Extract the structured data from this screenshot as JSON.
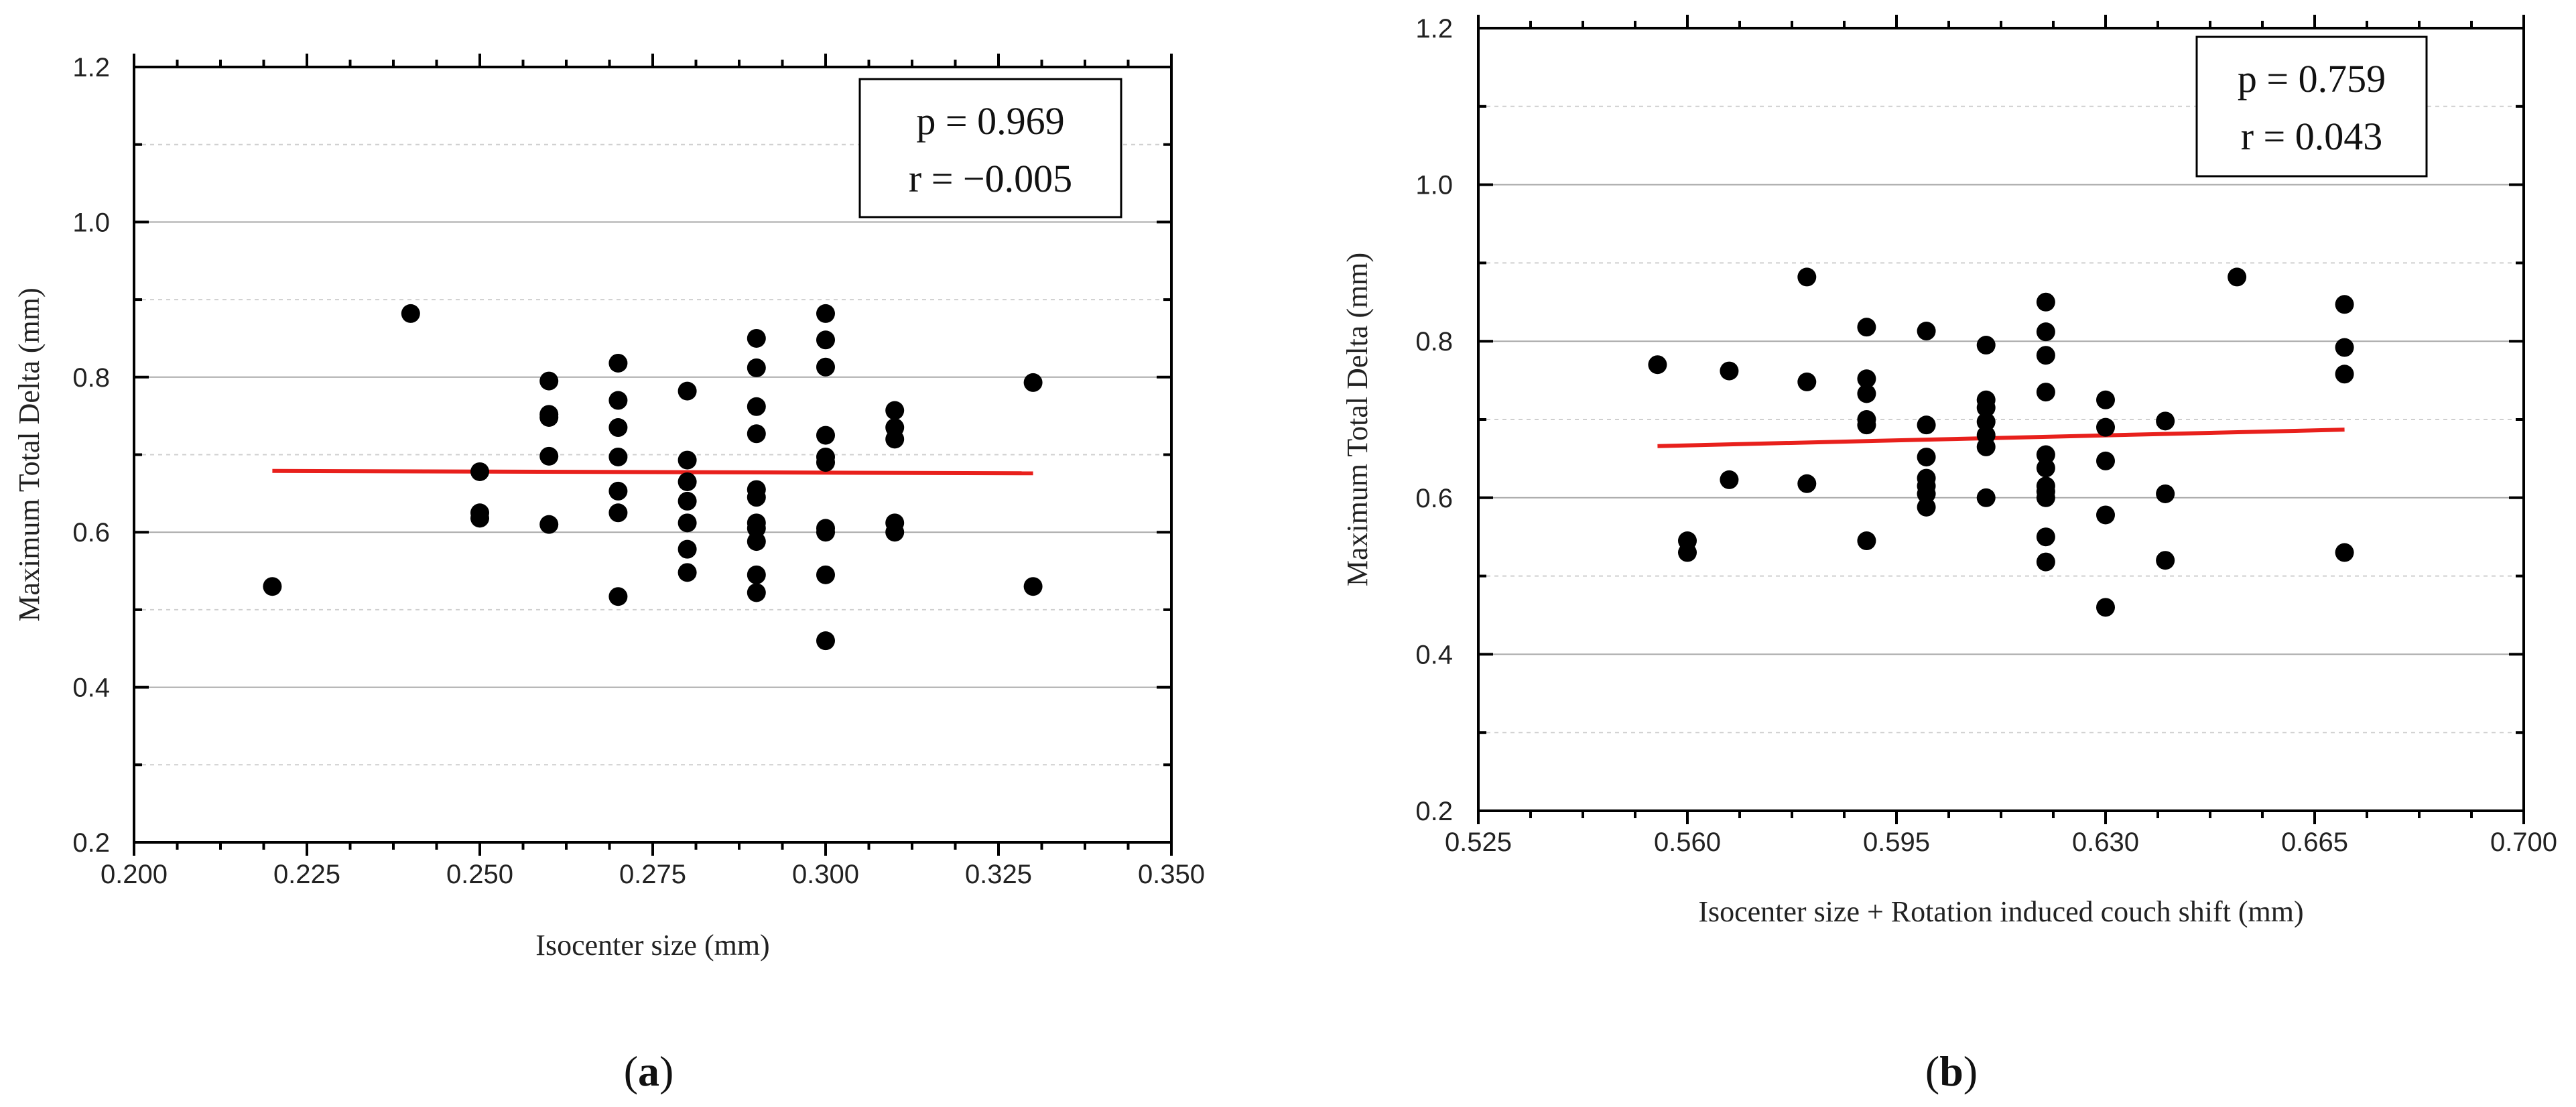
{
  "chart_data": [
    {
      "type": "scatter",
      "panel": "a",
      "panel_label": "a",
      "xlabel": "Isocenter size (mm)",
      "ylabel": "Maximum Total Delta (mm)",
      "xlim": [
        0.2,
        0.35
      ],
      "ylim": [
        0.2,
        1.2
      ],
      "xticks": [
        "0.200",
        "0.225",
        "0.250",
        "0.275",
        "0.300",
        "0.325",
        "0.350"
      ],
      "yticks": [
        "0.2",
        "0.4",
        "0.6",
        "0.8",
        "1.0",
        "1.2"
      ],
      "stats": [
        "p = 0.969",
        "r = −0.005"
      ],
      "fit_line": {
        "x": [
          0.22,
          0.33
        ],
        "y": [
          0.679,
          0.676
        ]
      },
      "points": [
        [
          0.22,
          0.53
        ],
        [
          0.24,
          0.882
        ],
        [
          0.25,
          0.678
        ],
        [
          0.25,
          0.625
        ],
        [
          0.25,
          0.618
        ],
        [
          0.26,
          0.795
        ],
        [
          0.26,
          0.752
        ],
        [
          0.26,
          0.748
        ],
        [
          0.26,
          0.698
        ],
        [
          0.26,
          0.61
        ],
        [
          0.27,
          0.818
        ],
        [
          0.27,
          0.77
        ],
        [
          0.27,
          0.735
        ],
        [
          0.27,
          0.697
        ],
        [
          0.27,
          0.653
        ],
        [
          0.27,
          0.625
        ],
        [
          0.27,
          0.517
        ],
        [
          0.28,
          0.782
        ],
        [
          0.28,
          0.693
        ],
        [
          0.28,
          0.665
        ],
        [
          0.28,
          0.64
        ],
        [
          0.28,
          0.612
        ],
        [
          0.28,
          0.578
        ],
        [
          0.28,
          0.548
        ],
        [
          0.29,
          0.85
        ],
        [
          0.29,
          0.812
        ],
        [
          0.29,
          0.762
        ],
        [
          0.29,
          0.727
        ],
        [
          0.29,
          0.655
        ],
        [
          0.29,
          0.645
        ],
        [
          0.29,
          0.612
        ],
        [
          0.29,
          0.605
        ],
        [
          0.29,
          0.588
        ],
        [
          0.29,
          0.545
        ],
        [
          0.29,
          0.522
        ],
        [
          0.3,
          0.882
        ],
        [
          0.3,
          0.848
        ],
        [
          0.3,
          0.813
        ],
        [
          0.3,
          0.725
        ],
        [
          0.3,
          0.697
        ],
        [
          0.3,
          0.69
        ],
        [
          0.3,
          0.605
        ],
        [
          0.3,
          0.6
        ],
        [
          0.3,
          0.545
        ],
        [
          0.3,
          0.46
        ],
        [
          0.31,
          0.757
        ],
        [
          0.31,
          0.735
        ],
        [
          0.31,
          0.72
        ],
        [
          0.31,
          0.612
        ],
        [
          0.31,
          0.6
        ],
        [
          0.33,
          0.793
        ],
        [
          0.33,
          0.53
        ]
      ]
    },
    {
      "type": "scatter",
      "panel": "b",
      "panel_label": "b",
      "xlabel": "Isocenter size + Rotation induced couch shift (mm)",
      "ylabel": "Maximum Total Delta (mm)",
      "xlim": [
        0.525,
        0.7
      ],
      "ylim": [
        0.2,
        1.2
      ],
      "xticks": [
        "0.525",
        "0.560",
        "0.595",
        "0.630",
        "0.665",
        "0.700"
      ],
      "yticks": [
        "0.2",
        "0.4",
        "0.6",
        "0.8",
        "1.0",
        "1.2"
      ],
      "stats": [
        "p = 0.759",
        "r = 0.043"
      ],
      "fit_line": {
        "x": [
          0.555,
          0.67
        ],
        "y": [
          0.666,
          0.687
        ]
      },
      "points": [
        [
          0.555,
          0.77
        ],
        [
          0.56,
          0.545
        ],
        [
          0.56,
          0.53
        ],
        [
          0.567,
          0.762
        ],
        [
          0.567,
          0.623
        ],
        [
          0.58,
          0.882
        ],
        [
          0.58,
          0.748
        ],
        [
          0.58,
          0.618
        ],
        [
          0.59,
          0.818
        ],
        [
          0.59,
          0.752
        ],
        [
          0.59,
          0.733
        ],
        [
          0.59,
          0.7
        ],
        [
          0.59,
          0.693
        ],
        [
          0.59,
          0.545
        ],
        [
          0.6,
          0.813
        ],
        [
          0.6,
          0.693
        ],
        [
          0.6,
          0.652
        ],
        [
          0.6,
          0.625
        ],
        [
          0.6,
          0.615
        ],
        [
          0.6,
          0.605
        ],
        [
          0.6,
          0.588
        ],
        [
          0.61,
          0.795
        ],
        [
          0.61,
          0.725
        ],
        [
          0.61,
          0.715
        ],
        [
          0.61,
          0.697
        ],
        [
          0.61,
          0.68
        ],
        [
          0.61,
          0.665
        ],
        [
          0.61,
          0.6
        ],
        [
          0.62,
          0.85
        ],
        [
          0.62,
          0.812
        ],
        [
          0.62,
          0.782
        ],
        [
          0.62,
          0.735
        ],
        [
          0.62,
          0.655
        ],
        [
          0.62,
          0.638
        ],
        [
          0.62,
          0.615
        ],
        [
          0.62,
          0.608
        ],
        [
          0.62,
          0.6
        ],
        [
          0.62,
          0.55
        ],
        [
          0.62,
          0.518
        ],
        [
          0.63,
          0.725
        ],
        [
          0.63,
          0.69
        ],
        [
          0.63,
          0.647
        ],
        [
          0.63,
          0.578
        ],
        [
          0.63,
          0.46
        ],
        [
          0.64,
          0.698
        ],
        [
          0.64,
          0.605
        ],
        [
          0.64,
          0.52
        ],
        [
          0.652,
          0.882
        ],
        [
          0.67,
          0.847
        ],
        [
          0.67,
          0.792
        ],
        [
          0.67,
          0.758
        ],
        [
          0.67,
          0.53
        ]
      ]
    }
  ]
}
